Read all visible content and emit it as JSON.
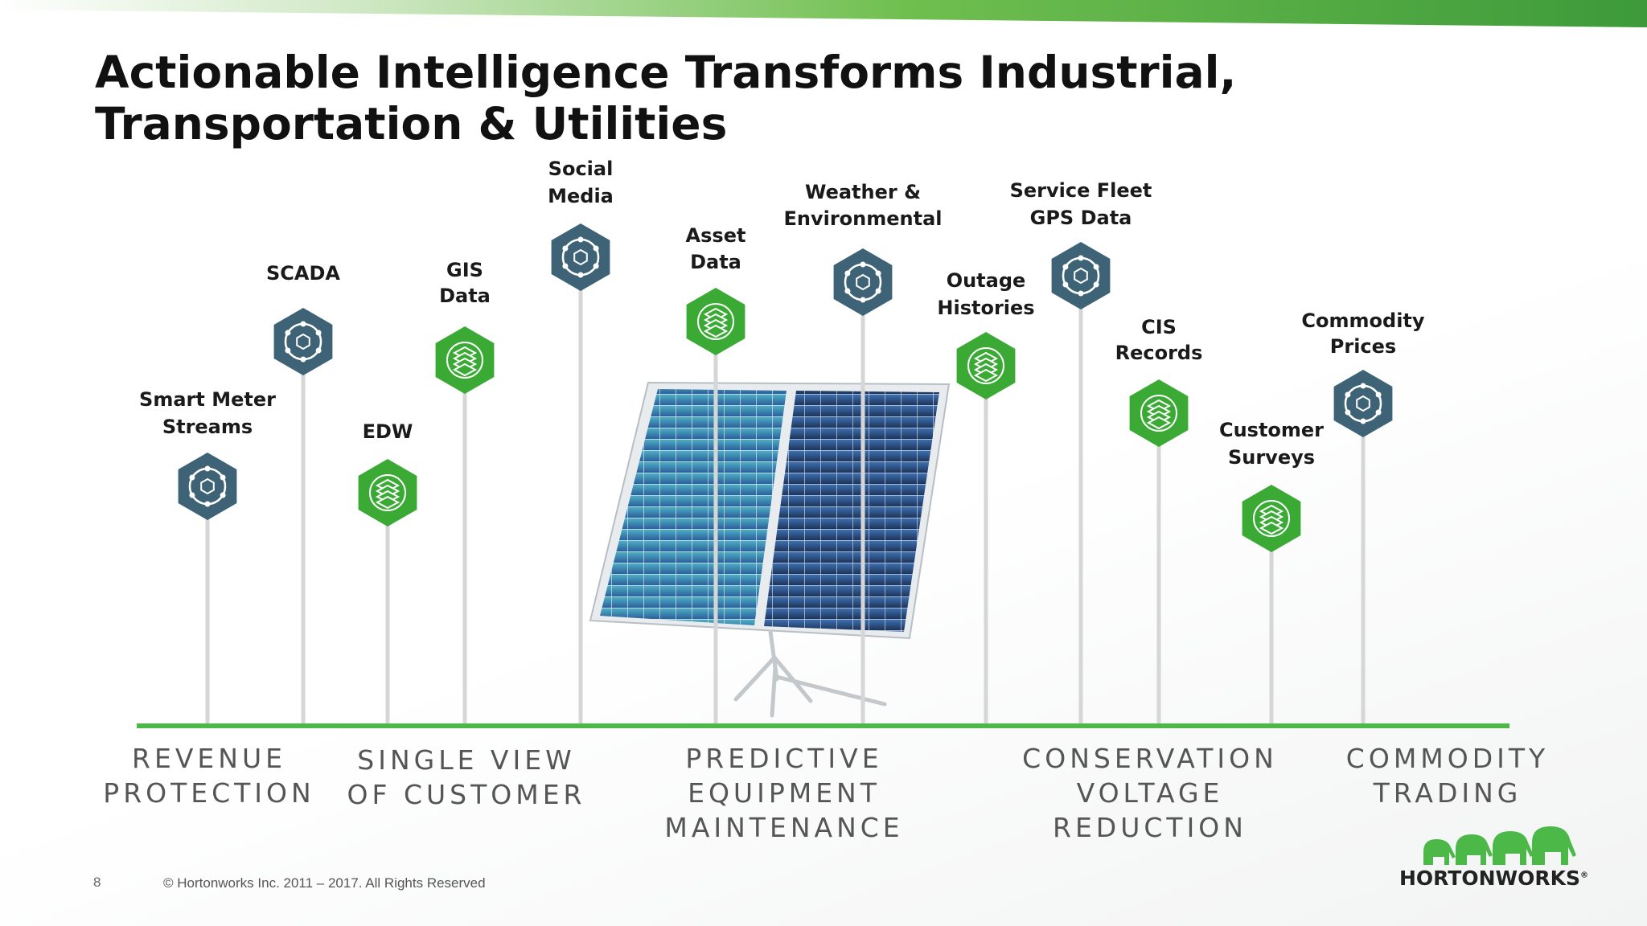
{
  "slide": {
    "title": "Actionable Intelligence Transforms Industrial, Transportation & Utilities",
    "page_number": "8",
    "copyright": "© Hortonworks Inc. 2011 – 2017. All Rights Reserved",
    "logo_text": "HORTONWORKS",
    "logo_mark": "®"
  },
  "colors": {
    "accent_green": "#3aaa35",
    "baseline_green": "#4cb848",
    "slate_blue": "#3e6376",
    "pole_gray": "#d6d6d6"
  },
  "data_sources": [
    {
      "label": "Smart Meter\nStreams",
      "icon": "hub-icon",
      "color": "slate"
    },
    {
      "label": "SCADA",
      "icon": "hub-icon",
      "color": "slate"
    },
    {
      "label": "EDW",
      "icon": "database-stack-icon",
      "color": "green"
    },
    {
      "label": "GIS\nData",
      "icon": "database-stack-icon",
      "color": "green"
    },
    {
      "label": "Social\nMedia",
      "icon": "hub-icon",
      "color": "slate"
    },
    {
      "label": "Asset\nData",
      "icon": "database-stack-icon",
      "color": "green"
    },
    {
      "label": "Weather &\nEnvironmental",
      "icon": "hub-icon",
      "color": "slate"
    },
    {
      "label": "Outage\nHistories",
      "icon": "database-stack-icon",
      "color": "green"
    },
    {
      "label": "Service Fleet\nGPS Data",
      "icon": "hub-icon",
      "color": "slate"
    },
    {
      "label": "CIS\nRecords",
      "icon": "database-stack-icon",
      "color": "green"
    },
    {
      "label": "Customer\nSurveys",
      "icon": "database-stack-icon",
      "color": "green"
    },
    {
      "label": "Commodity\nPrices",
      "icon": "hub-icon",
      "color": "slate"
    }
  ],
  "use_cases": [
    "REVENUE\nPROTECTION",
    "SINGLE VIEW\nOF CUSTOMER",
    "PREDICTIVE EQUIPMENT\nMAINTENANCE",
    "CONSERVATION\nVOLTAGE REDUCTION",
    "COMMODITY\nTRADING"
  ],
  "illustration": "solar-panel-image"
}
